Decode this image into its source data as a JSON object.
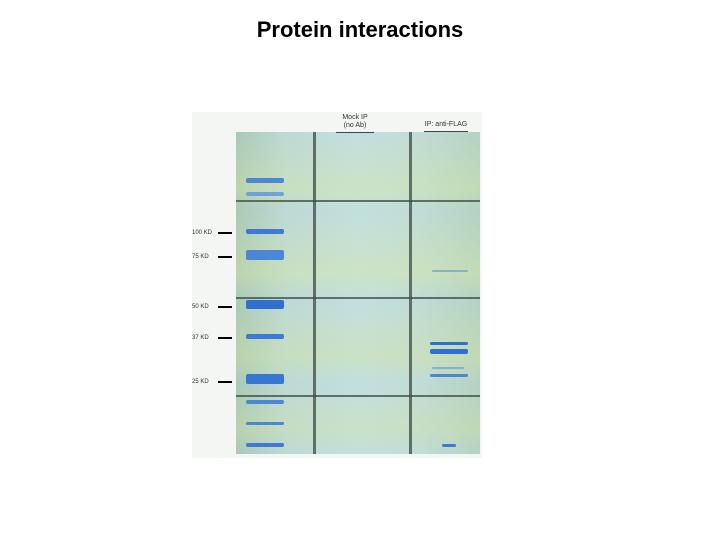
{
  "slide": {
    "title": "Protein interactions"
  },
  "gel": {
    "lanes": [
      {
        "id": "ladder",
        "label": ""
      },
      {
        "id": "mock",
        "label_line1": "Mock IP",
        "label_line2": "(no Ab)"
      },
      {
        "id": "flag",
        "label_line1": "IP: anti-FLAG",
        "label_line2": ""
      }
    ],
    "markers": [
      {
        "label": "100 KD"
      },
      {
        "label": "75 KD"
      },
      {
        "label": "50 KD"
      },
      {
        "label": "37 KD"
      },
      {
        "label": "25 KD"
      }
    ],
    "colors": {
      "band_dark": "#2f6fd0",
      "band_light": "#5b93e0",
      "gel_bg": "#c0dcd8"
    }
  }
}
